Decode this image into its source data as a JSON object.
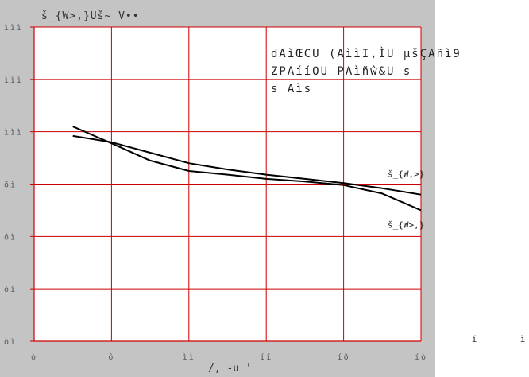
{
  "chart_data": {
    "type": "line",
    "ylabel": "š_{W>,}Uš~ V••",
    "xlabel": "/, -u '",
    "xlim": [
      0,
      1
    ],
    "ylim": [
      0,
      6
    ],
    "x_tick_labels": [
      "ò",
      "ô",
      "ìì",
      "íî",
      "íð",
      "íò"
    ],
    "y_tick_labels": [
      "òì",
      "óì",
      "ôì",
      "õì",
      "ììì",
      "ììì",
      "ììì"
    ],
    "extra_x_labels": [
      "í",
      "ì"
    ],
    "grid": true,
    "annotation_lines": [
      "dAìŒCU (AììI,ÌU µšÇAñì9",
      "ZPAííOU PAìñŵ&U s",
      "s Aìs"
    ],
    "series": [
      {
        "name": "š_{W,>}",
        "x": [
          0.1,
          0.2,
          0.3,
          0.4,
          0.5,
          0.6,
          0.7,
          0.8,
          0.9,
          1.0
        ],
        "y": [
          3.92,
          3.8,
          3.6,
          3.4,
          3.28,
          3.18,
          3.1,
          3.02,
          2.92,
          2.8
        ]
      },
      {
        "name": "š_{W>,}",
        "x": [
          0.1,
          0.2,
          0.3,
          0.4,
          0.5,
          0.6,
          0.7,
          0.8,
          0.9,
          1.0
        ],
        "y": [
          4.1,
          3.78,
          3.45,
          3.25,
          3.18,
          3.1,
          3.05,
          2.98,
          2.82,
          2.5
        ]
      }
    ]
  }
}
